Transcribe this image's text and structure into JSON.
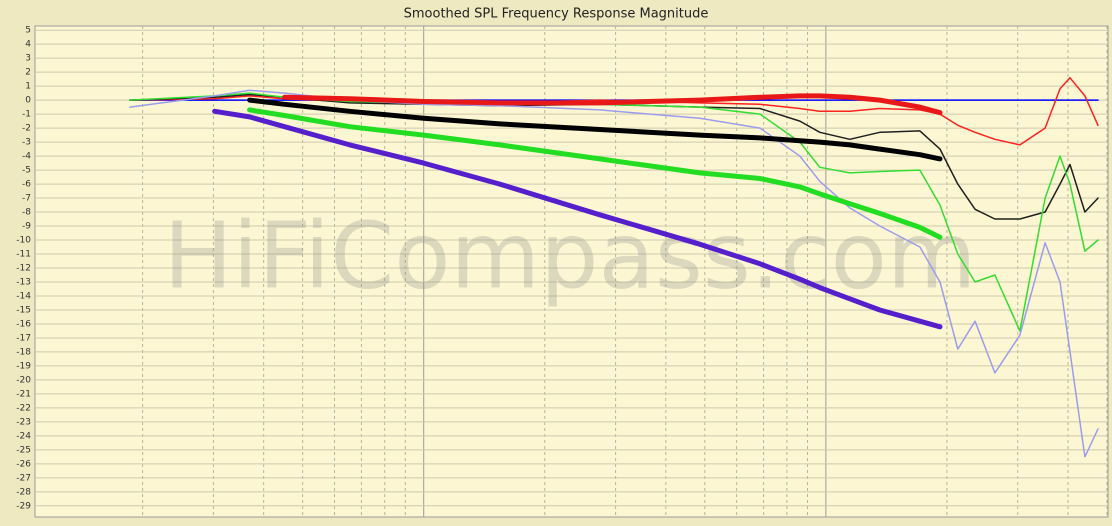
{
  "chart_data": {
    "type": "line",
    "title": "Smoothed SPL Frequency Response Magnitude",
    "watermark": "HiFiCompass.com",
    "x": [
      186,
      302,
      369,
      451,
      655,
      1000,
      1546,
      2740,
      4860,
      6860,
      8620,
      9660,
      11470,
      13620,
      17130,
      19220,
      21290,
      23500,
      26330,
      30380,
      35080,
      38220,
      40470,
      44080,
      47500
    ],
    "xlim": [
      108,
      50300
    ],
    "xlog": true,
    "ylim": [
      -29.8,
      5.3
    ],
    "yticks": [
      5,
      4,
      3,
      2,
      1,
      0,
      -1,
      -2,
      -3,
      -4,
      -5,
      -6,
      -7,
      -8,
      -9,
      -10,
      -11,
      -12,
      -13,
      -14,
      -15,
      -16,
      -17,
      -18,
      -19,
      -20,
      -21,
      -22,
      -23,
      -24,
      -25,
      -26,
      -27,
      -28,
      -29
    ],
    "grid": true,
    "series": [
      {
        "color": "#0000ff",
        "width": 1.5,
        "values": [
          0,
          0,
          0,
          0,
          0,
          0,
          0,
          0,
          0,
          0,
          0,
          0,
          0,
          0,
          0,
          0,
          0,
          0,
          0,
          0,
          0,
          0,
          0,
          0,
          0
        ]
      },
      {
        "color": "#ff2020",
        "width": 1.5,
        "values": [
          0,
          0.1,
          0.3,
          0.1,
          -0.1,
          -0.2,
          -0.2,
          0,
          -0.2,
          -0.3,
          -0.6,
          -0.8,
          -0.8,
          -0.6,
          -0.7,
          -1,
          -1.8,
          -2.3,
          -2.8,
          -3.2,
          -2,
          0.8,
          1.6,
          0.3,
          -1.8
        ]
      },
      {
        "color": "#202020",
        "width": 1.5,
        "values": [
          0,
          0.2,
          0.4,
          0.2,
          -0.2,
          -0.3,
          -0.4,
          -0.3,
          -0.5,
          -0.6,
          -1.5,
          -2.3,
          -2.8,
          -2.3,
          -2.2,
          -3.5,
          -6,
          -7.8,
          -8.5,
          -8.5,
          -8,
          -6,
          -4.6,
          -8,
          -7
        ]
      },
      {
        "color": "#33dd33",
        "width": 1.5,
        "values": [
          0,
          0.3,
          0.5,
          0.2,
          -0.1,
          -0.2,
          -0.3,
          -0.3,
          -0.5,
          -1,
          -3,
          -4.8,
          -5.2,
          -5.1,
          -5,
          -7.5,
          -11,
          -13,
          -12.5,
          -16.5,
          -7,
          -4,
          -6,
          -10.8,
          -10
        ]
      },
      {
        "color": "#9c9cee",
        "width": 1.5,
        "values": [
          -0.5,
          0.3,
          0.7,
          0.5,
          0,
          -0.3,
          -0.4,
          -0.7,
          -1.3,
          -2,
          -4,
          -5.8,
          -7.7,
          -9,
          -10.5,
          -13,
          -17.8,
          -15.8,
          -19.5,
          -16.8,
          -10.2,
          -13,
          -18,
          -25.5,
          -23.5
        ]
      },
      {
        "color": "#e81818",
        "width": 5,
        "values": [
          null,
          null,
          null,
          0.2,
          0.1,
          -0.1,
          -0.2,
          -0.2,
          0,
          0.2,
          0.3,
          0.3,
          0.2,
          0,
          -0.5,
          -0.9,
          null,
          null,
          null,
          null,
          null,
          null,
          null,
          null,
          null
        ]
      },
      {
        "color": "#000000",
        "width": 5,
        "values": [
          null,
          null,
          0,
          -0.3,
          -0.8,
          -1.3,
          -1.7,
          -2.1,
          -2.5,
          -2.7,
          -2.9,
          -3,
          -3.2,
          -3.5,
          -3.9,
          -4.2,
          null,
          null,
          null,
          null,
          null,
          null,
          null,
          null,
          null
        ]
      },
      {
        "color": "#22dd22",
        "width": 5,
        "values": [
          null,
          null,
          -0.7,
          -1.1,
          -1.9,
          -2.5,
          -3.2,
          -4.2,
          -5.2,
          -5.6,
          -6.2,
          -6.7,
          -7.4,
          -8.1,
          -9.1,
          -9.8,
          null,
          null,
          null,
          null,
          null,
          null,
          null,
          null,
          null
        ]
      },
      {
        "color": "#5520cc",
        "width": 5,
        "values": [
          null,
          -0.8,
          -1.2,
          -1.9,
          -3.2,
          -4.5,
          -6,
          -8.2,
          -10.3,
          -11.7,
          -12.8,
          -13.4,
          -14.2,
          -15,
          -15.8,
          -16.2,
          null,
          null,
          null,
          null,
          null,
          null,
          null,
          null,
          null
        ]
      }
    ]
  }
}
